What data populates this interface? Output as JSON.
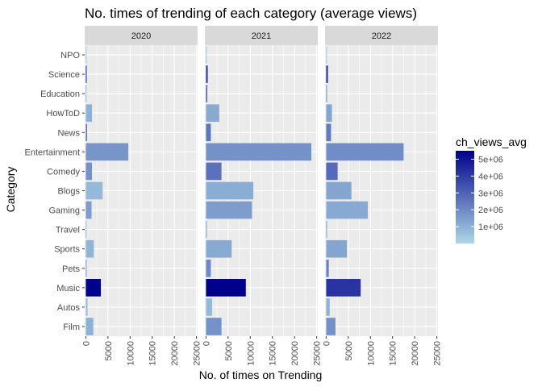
{
  "chart_data": {
    "type": "bar",
    "orientation": "horizontal",
    "title": "No. times of trending of each category (average views)",
    "xlabel": "No. of times on Trending",
    "ylabel": "Category",
    "xlim": [
      0,
      25000
    ],
    "x_ticks": [
      0,
      5000,
      10000,
      15000,
      20000,
      25000
    ],
    "x_tick_labels": [
      "0",
      "5000",
      "10000",
      "15000",
      "20000",
      "25000"
    ],
    "categories": [
      "Film",
      "Autos",
      "Music",
      "Pets",
      "Sports",
      "Travel",
      "Gaming",
      "Blogs",
      "Comedy",
      "Entertainment",
      "News",
      "HowToD",
      "Education",
      "Science",
      "NPO"
    ],
    "facets": [
      {
        "label": "2020",
        "counts": [
          1700,
          400,
          3400,
          200,
          1800,
          100,
          1300,
          3800,
          1400,
          9600,
          300,
          1400,
          100,
          200,
          50
        ],
        "views_avg": [
          1000000,
          700000,
          5500000,
          1500000,
          900000,
          1500000,
          1500000,
          800000,
          1800000,
          1700000,
          2500000,
          1000000,
          1500000,
          4500000,
          1000000
        ]
      },
      {
        "label": "2021",
        "counts": [
          3500,
          1400,
          9000,
          1100,
          5800,
          200,
          10400,
          10700,
          3500,
          23800,
          1100,
          3000,
          300,
          400,
          100
        ],
        "views_avg": [
          1800000,
          800000,
          5500000,
          2000000,
          1200000,
          1500000,
          1500000,
          1100000,
          2600000,
          1800000,
          2500000,
          1200000,
          3000000,
          4000000,
          1200000
        ]
      },
      {
        "label": "2022",
        "counts": [
          2100,
          800,
          7800,
          600,
          4700,
          200,
          9400,
          5700,
          2600,
          17500,
          1100,
          1300,
          200,
          400,
          50
        ],
        "views_avg": [
          1800000,
          1000000,
          4200000,
          2200000,
          1300000,
          1500000,
          1200000,
          1300000,
          2800000,
          1900000,
          2400000,
          1300000,
          1800000,
          4200000,
          1000000
        ]
      }
    ],
    "legend": {
      "title": "ch_views_avg",
      "position": "right",
      "min": 0,
      "max": 5500000,
      "tick_values": [
        1000000,
        2000000,
        3000000,
        4000000,
        5000000
      ],
      "tick_labels": [
        "1e+06",
        "2e+06",
        "3e+06",
        "4e+06",
        "5e+06"
      ],
      "low_color": "#add8e6",
      "high_color": "#00008b"
    },
    "panel_background": "#ebebeb",
    "strip_background": "#d9d9d9",
    "gridline_color": "#ffffff",
    "grid": true
  }
}
